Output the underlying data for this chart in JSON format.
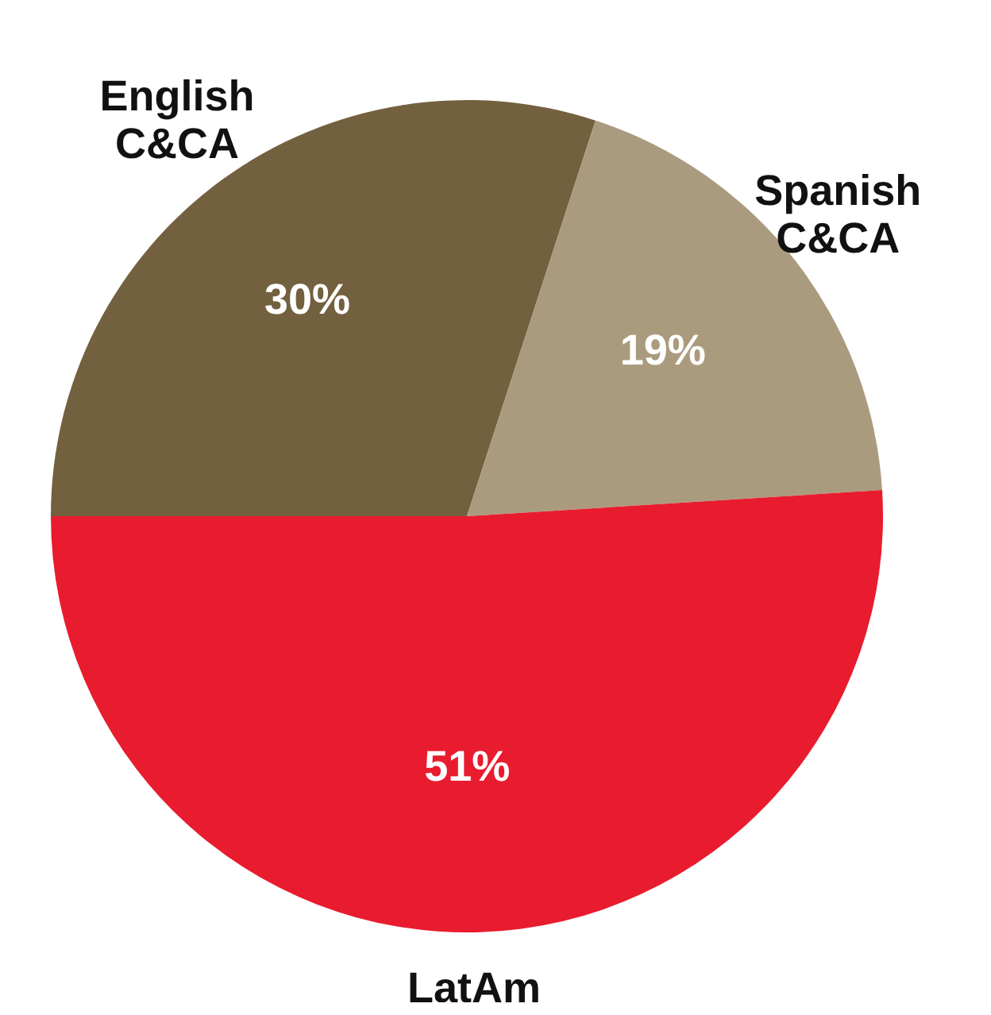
{
  "chart_data": {
    "type": "pie",
    "categories": [
      "English C&CA",
      "Spanish C&CA",
      "LatAm"
    ],
    "values": [
      30,
      19,
      51
    ],
    "value_labels": [
      "30%",
      "19%",
      "51%"
    ],
    "colors": [
      "#73603f",
      "#ab9b7e",
      "#e81c2e"
    ]
  }
}
